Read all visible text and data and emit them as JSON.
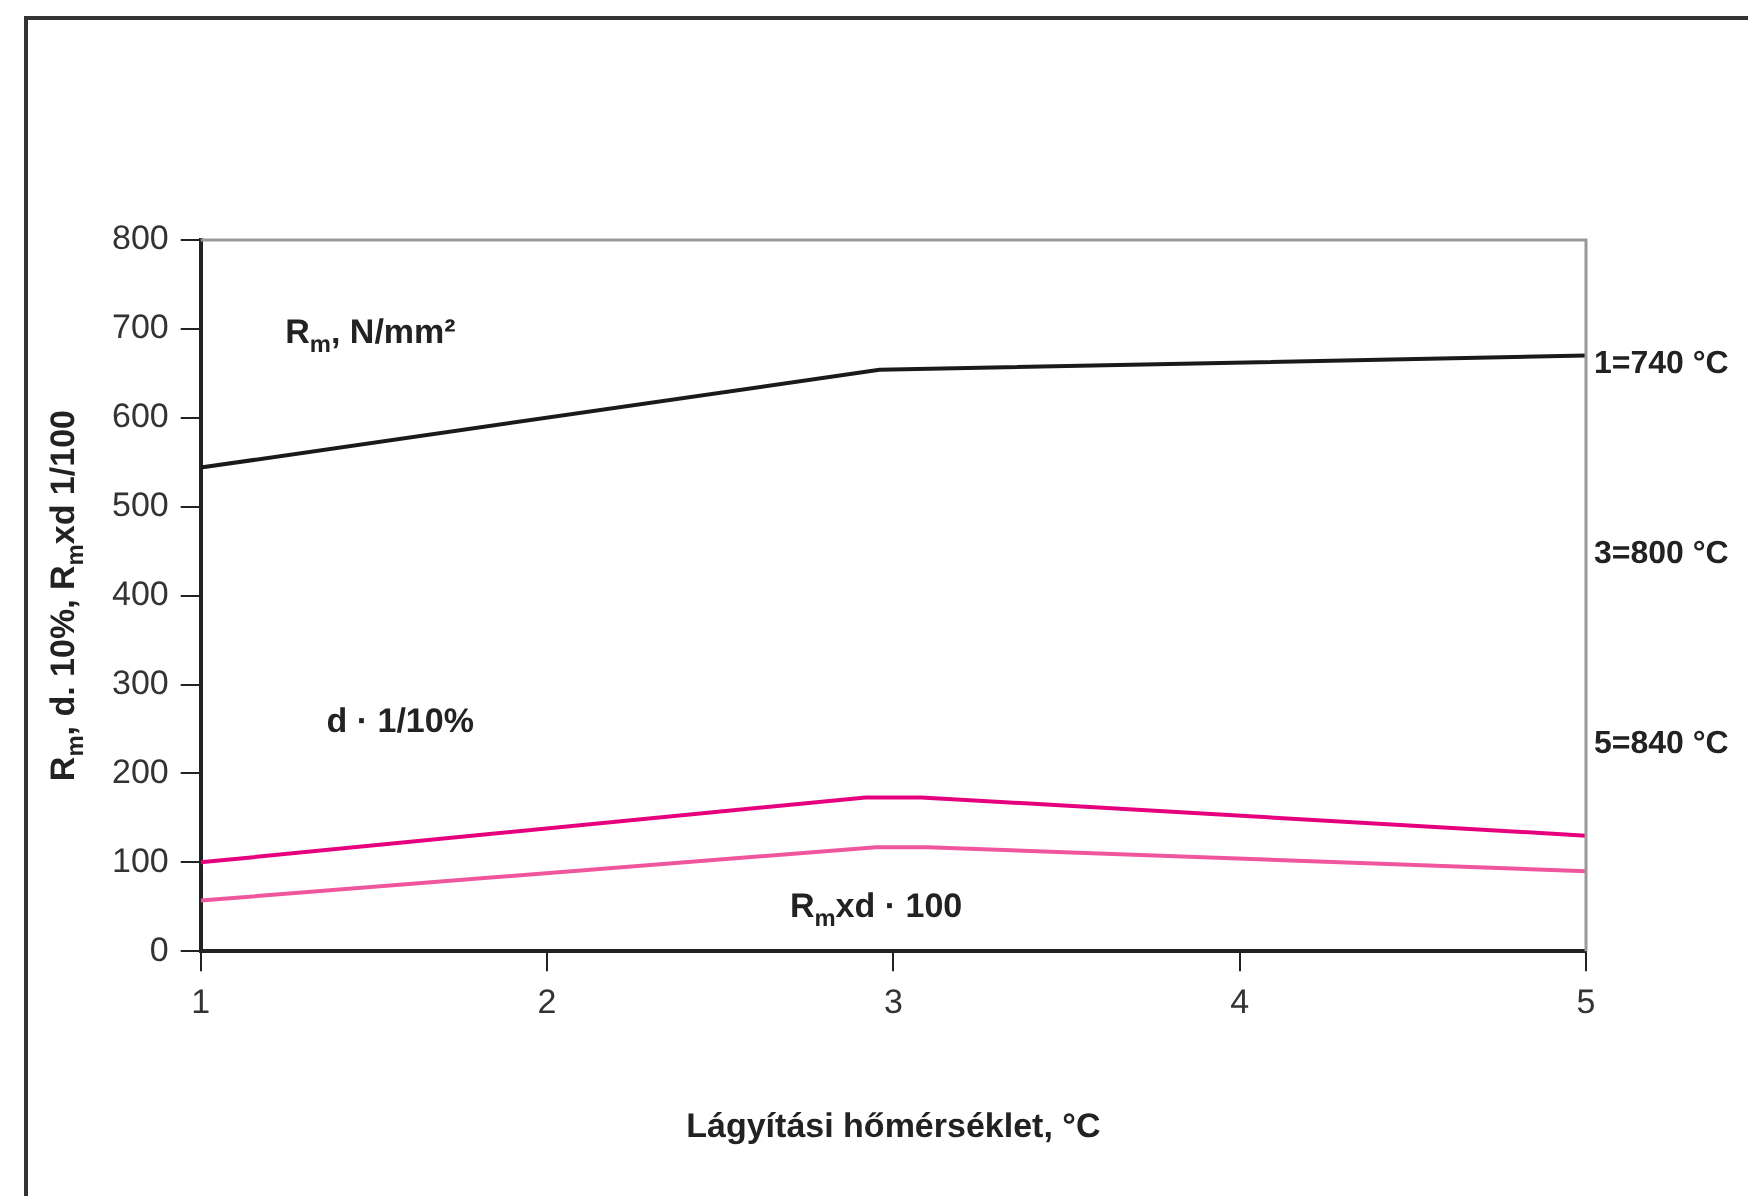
{
  "chart_data": {
    "type": "line",
    "xlabel": "Lágyítási hőmérséklet, °C",
    "ylabel": "R$_{m}$, d. 10%, R$_{m}$xd 1/100",
    "xlim": [
      1,
      5
    ],
    "xticks": [
      1,
      2,
      3,
      4,
      5
    ],
    "ylim": [
      0,
      800
    ],
    "yticks": [
      0,
      100,
      200,
      300,
      400,
      500,
      600,
      700,
      800
    ],
    "grid": false,
    "legend": false,
    "marker": "none",
    "line_style": "solid",
    "series": [
      {
        "name": "R$_{m}$, N/mm²",
        "color": "#1a1a1a",
        "x": [
          1,
          2.96,
          5
        ],
        "values": [
          544,
          654,
          670
        ]
      },
      {
        "name": "d · 1/10%",
        "color": "#e6007e",
        "x": [
          1,
          2.92,
          3.08,
          5
        ],
        "values": [
          100,
          173,
          173,
          130
        ]
      },
      {
        "name": "R$_{m}$xd · 100",
        "color": "#f0569e",
        "x": [
          1,
          2.95,
          3.1,
          5
        ],
        "values": [
          57,
          117,
          117,
          90
        ]
      }
    ],
    "annotations": [
      "1=740 °C",
      "3=800 °C",
      "5=840 °C"
    ]
  }
}
